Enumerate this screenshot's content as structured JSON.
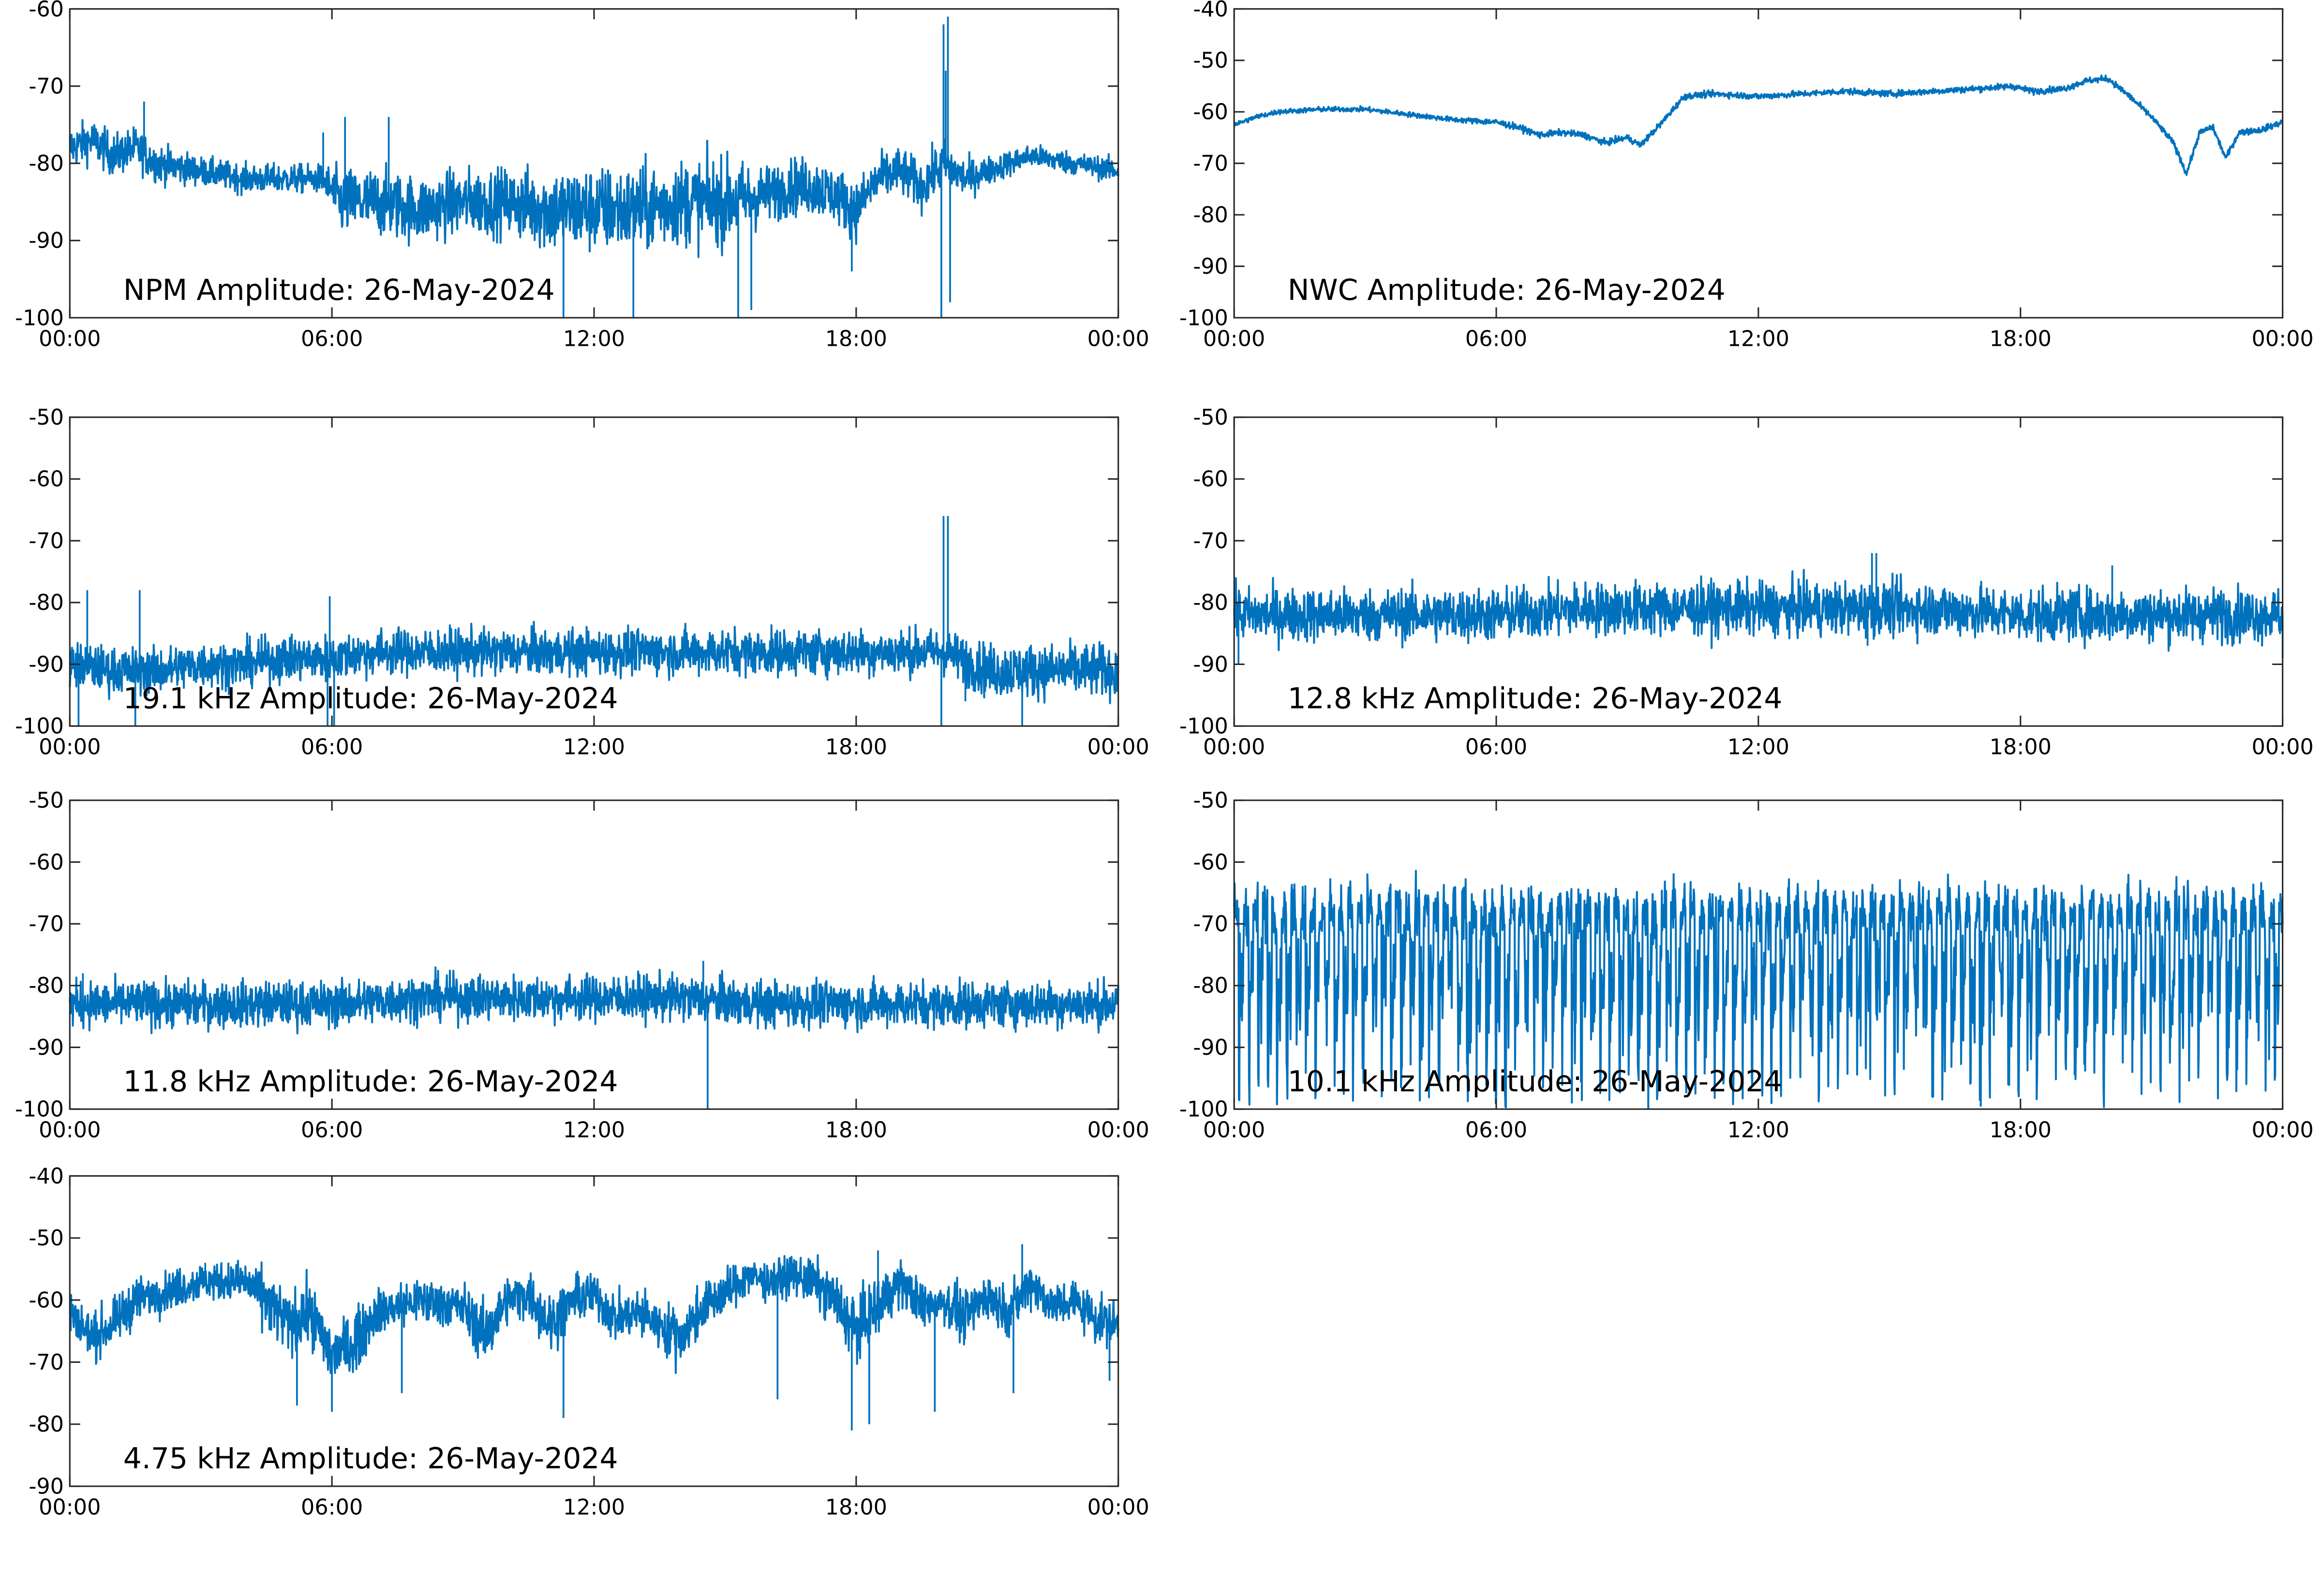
{
  "figure": {
    "background": "#ffffff"
  },
  "style": {
    "line_color": "#0072BD",
    "axes_color": "#262626",
    "text_color": "#000000"
  },
  "x_axis": {
    "ticks": [
      0,
      6,
      12,
      18,
      24
    ],
    "tick_labels": [
      "00:00",
      "06:00",
      "12:00",
      "18:00",
      "00:00"
    ],
    "range_hours": [
      0,
      24
    ]
  },
  "chart_data": [
    {
      "type": "line",
      "title": "NPM Amplitude: 26-May-2024",
      "ylim": [
        -100,
        -60
      ],
      "yticks": [
        -100,
        -90,
        -80,
        -70,
        -60
      ],
      "series": [
        {
          "x": [
            0,
            0.5,
            1,
            1.5,
            2,
            3,
            4,
            5,
            5.8,
            6.2,
            7,
            8,
            9,
            10,
            11,
            12,
            13,
            14,
            15,
            16,
            16.5,
            17,
            17.5,
            18,
            18.5,
            19,
            19.5,
            20,
            20.5,
            21,
            22,
            23,
            24
          ],
          "values": [
            -78,
            -77,
            -79,
            -78,
            -80,
            -81,
            -82,
            -82,
            -82,
            -85,
            -85,
            -86,
            -85,
            -85,
            -86,
            -86,
            -86,
            -85,
            -85,
            -84,
            -83,
            -83,
            -84,
            -86,
            -82,
            -81,
            -83,
            -80,
            -82,
            -81,
            -79,
            -80,
            -81
          ],
          "noise": [
            2.2,
            2.2,
            2.2,
            2.2,
            2.0,
            1.5,
            1.5,
            1.5,
            1.5,
            3.5,
            3.5,
            3.5,
            3.5,
            3.5,
            4.5,
            4.5,
            4.5,
            4.5,
            4.5,
            3.0,
            3.0,
            3.0,
            3.0,
            3.0,
            2.5,
            2.5,
            2.5,
            2.5,
            2.0,
            1.5,
            1.2,
            1.2,
            1.2
          ],
          "spikes": [
            [
              20.0,
              -62
            ],
            [
              20.05,
              -68
            ],
            [
              20.1,
              -61
            ],
            [
              19.95,
              -100
            ],
            [
              20.15,
              -98
            ],
            [
              5.8,
              -76
            ],
            [
              6.3,
              -74
            ],
            [
              7.3,
              -74
            ],
            [
              1.7,
              -72
            ],
            [
              11.3,
              -100
            ],
            [
              12.9,
              -100
            ],
            [
              15.3,
              -100
            ],
            [
              15.6,
              -99
            ],
            [
              17.9,
              -94
            ]
          ]
        }
      ]
    },
    {
      "type": "line",
      "title": "NWC Amplitude: 26-May-2024",
      "ylim": [
        -100,
        -40
      ],
      "yticks": [
        -100,
        -90,
        -80,
        -70,
        -60,
        -50,
        -40
      ],
      "series": [
        {
          "x": [
            0,
            0.5,
            1,
            2,
            3,
            4,
            5,
            6,
            6.5,
            7,
            7.5,
            8,
            8.5,
            9,
            9.3,
            9.8,
            10.3,
            11,
            12,
            13,
            14,
            15,
            16,
            17,
            17.8,
            18.3,
            19,
            19.5,
            20,
            20.5,
            21,
            21.5,
            21.8,
            22.1,
            22.4,
            22.7,
            23,
            23.5,
            24
          ],
          "values": [
            -62.5,
            -61,
            -60,
            -59.5,
            -59.5,
            -60.5,
            -61.5,
            -62,
            -63,
            -64.5,
            -64,
            -64.5,
            -66,
            -65,
            -66.5,
            -62,
            -57,
            -56.5,
            -57,
            -56.5,
            -56,
            -56.5,
            -56,
            -55.5,
            -55,
            -56,
            -55.5,
            -54,
            -53.5,
            -57,
            -61,
            -66,
            -72,
            -64,
            -63,
            -69,
            -64,
            -63.5,
            -62
          ],
          "noise": [
            0.4,
            0.4,
            0.4,
            0.4,
            0.4,
            0.4,
            0.4,
            0.5,
            0.5,
            0.5,
            0.5,
            0.5,
            0.5,
            0.5,
            0.5,
            0.5,
            0.5,
            0.5,
            0.5,
            0.5,
            0.5,
            0.5,
            0.5,
            0.5,
            0.5,
            0.5,
            0.5,
            0.5,
            0.5,
            0.5,
            0.5,
            0.5,
            0.5,
            0.5,
            0.5,
            0.5,
            0.5,
            0.5,
            0.5
          ],
          "spikes": []
        }
      ]
    },
    {
      "type": "line",
      "title": "19.1 kHz Amplitude: 26-May-2024",
      "ylim": [
        -100,
        -50
      ],
      "yticks": [
        -100,
        -90,
        -80,
        -70,
        -60,
        -50
      ],
      "series": [
        {
          "x": [
            0,
            1,
            2,
            3,
            4,
            5,
            6,
            7,
            8,
            9,
            10,
            11,
            12,
            13,
            14,
            15,
            16,
            17,
            18,
            19,
            20,
            21,
            22,
            23,
            24
          ],
          "values": [
            -90,
            -91,
            -91,
            -90,
            -90,
            -89,
            -89,
            -88,
            -88,
            -88,
            -88,
            -88,
            -88,
            -88,
            -88,
            -88,
            -88,
            -88,
            -88,
            -88,
            -88,
            -91,
            -91,
            -91,
            -91
          ],
          "noise": [
            3,
            3,
            3,
            3,
            3,
            3,
            3,
            3,
            3,
            3,
            3,
            3,
            3,
            3,
            3,
            3,
            3,
            3,
            3,
            3,
            3,
            3.5,
            3.5,
            3.5,
            3.5
          ],
          "spikes": [
            [
              20.0,
              -66
            ],
            [
              20.1,
              -66
            ],
            [
              19.95,
              -100
            ],
            [
              0.4,
              -78
            ],
            [
              1.6,
              -78
            ],
            [
              5.95,
              -79
            ],
            [
              0.2,
              -100
            ],
            [
              1.5,
              -100
            ],
            [
              5.9,
              -100
            ],
            [
              6.05,
              -100
            ],
            [
              20.5,
              -96
            ],
            [
              21.8,
              -100
            ]
          ]
        }
      ]
    },
    {
      "type": "line",
      "title": "12.8 kHz Amplitude: 26-May-2024",
      "ylim": [
        -100,
        -50
      ],
      "yticks": [
        -100,
        -90,
        -80,
        -70,
        -60,
        -50
      ],
      "series": [
        {
          "x": [
            0,
            2,
            4,
            6,
            8,
            10,
            12,
            14,
            16,
            18,
            20,
            22,
            24
          ],
          "values": [
            -82,
            -82,
            -82,
            -82,
            -81,
            -81,
            -81,
            -81,
            -81,
            -82,
            -82,
            -82,
            -82
          ],
          "noise": [
            3.5,
            3.5,
            3.5,
            3.5,
            3.5,
            3.5,
            3.5,
            3.5,
            3.5,
            3.5,
            3.5,
            3.5,
            3.5
          ],
          "spikes": [
            [
              14.6,
              -72
            ],
            [
              14.7,
              -72
            ],
            [
              14.5,
              -87
            ],
            [
              20.1,
              -74
            ],
            [
              0.1,
              -90
            ],
            [
              24,
              -89
            ]
          ]
        }
      ]
    },
    {
      "type": "line",
      "title": "11.8 kHz Amplitude: 26-May-2024",
      "ylim": [
        -100,
        -50
      ],
      "yticks": [
        -100,
        -90,
        -80,
        -70,
        -60,
        -50
      ],
      "series": [
        {
          "x": [
            0,
            2,
            4,
            6,
            8,
            10,
            12,
            14,
            16,
            18,
            20,
            22,
            24
          ],
          "values": [
            -83,
            -83,
            -83,
            -83,
            -82,
            -82,
            -82,
            -82,
            -83,
            -83,
            -83,
            -83,
            -83
          ],
          "noise": [
            3,
            3,
            3,
            3,
            3,
            3,
            3,
            3,
            3,
            3,
            3,
            3,
            3
          ],
          "spikes": [
            [
              14.6,
              -100
            ],
            [
              14.5,
              -76
            ],
            [
              0.3,
              -78
            ]
          ]
        }
      ]
    },
    {
      "type": "line",
      "title": "10.1 kHz Amplitude: 26-May-2024",
      "ylim": [
        -100,
        -50
      ],
      "yticks": [
        -100,
        -90,
        -80,
        -70,
        -60,
        -50
      ],
      "series": [
        {
          "x": [
            0,
            2,
            4,
            6,
            8,
            10,
            12,
            14,
            16,
            18,
            20,
            22,
            24
          ],
          "values": [
            -72,
            -72,
            -72,
            -72,
            -72,
            -72,
            -72,
            -72,
            -72,
            -72,
            -72,
            -71,
            -71
          ],
          "noise": [
            4,
            4,
            4,
            4,
            4,
            4,
            4,
            4,
            4,
            4,
            4,
            4,
            4
          ],
          "spikes": []
        }
      ]
    },
    {
      "type": "line",
      "title": "4.75 kHz Amplitude: 26-May-2024",
      "ylim": [
        -90,
        -40
      ],
      "yticks": [
        -90,
        -80,
        -70,
        -60,
        -50,
        -40
      ],
      "series": [
        {
          "x": [
            0,
            0.5,
            1,
            1.5,
            2,
            3,
            4,
            4.5,
            5,
            5.5,
            6,
            6.5,
            7,
            8,
            9,
            9.5,
            10,
            10.5,
            11,
            11.5,
            12,
            12.5,
            13,
            13.5,
            14,
            14.5,
            15,
            15.5,
            16,
            16.5,
            17,
            17.5,
            18,
            18.5,
            19,
            19.5,
            20,
            20.5,
            21,
            21.5,
            22,
            22.5,
            23,
            23.5,
            24
          ],
          "values": [
            -62,
            -66,
            -64,
            -60,
            -59,
            -57,
            -57,
            -60,
            -64,
            -62,
            -69,
            -67,
            -62,
            -60,
            -61,
            -66,
            -60,
            -59,
            -64,
            -60,
            -59,
            -63,
            -62,
            -64,
            -66,
            -61,
            -59,
            -56,
            -57,
            -56,
            -57,
            -60,
            -65,
            -61,
            -57,
            -61,
            -60,
            -63,
            -59,
            -62,
            -57,
            -61,
            -60,
            -63,
            -64
          ],
          "noise": [
            3,
            3,
            3,
            3,
            2.5,
            2.5,
            2.5,
            4,
            4,
            4,
            4,
            4,
            3,
            3,
            3,
            4,
            3,
            3,
            4,
            3,
            3,
            3,
            3,
            3,
            4,
            3,
            3,
            2.5,
            2.5,
            2.5,
            3,
            3.5,
            4,
            4,
            3,
            3,
            3,
            3.5,
            3,
            3,
            3,
            3,
            3,
            3,
            3
          ],
          "spikes": [
            [
              5.2,
              -77
            ],
            [
              6.0,
              -78
            ],
            [
              7.6,
              -75
            ],
            [
              11.3,
              -79
            ],
            [
              16.2,
              -76
            ],
            [
              17.9,
              -81
            ],
            [
              18.3,
              -80
            ],
            [
              19.8,
              -78
            ],
            [
              21.6,
              -75
            ],
            [
              23.8,
              -73
            ],
            [
              3.1,
              -54
            ],
            [
              18.5,
              -52
            ],
            [
              21.8,
              -51
            ]
          ]
        }
      ]
    }
  ]
}
